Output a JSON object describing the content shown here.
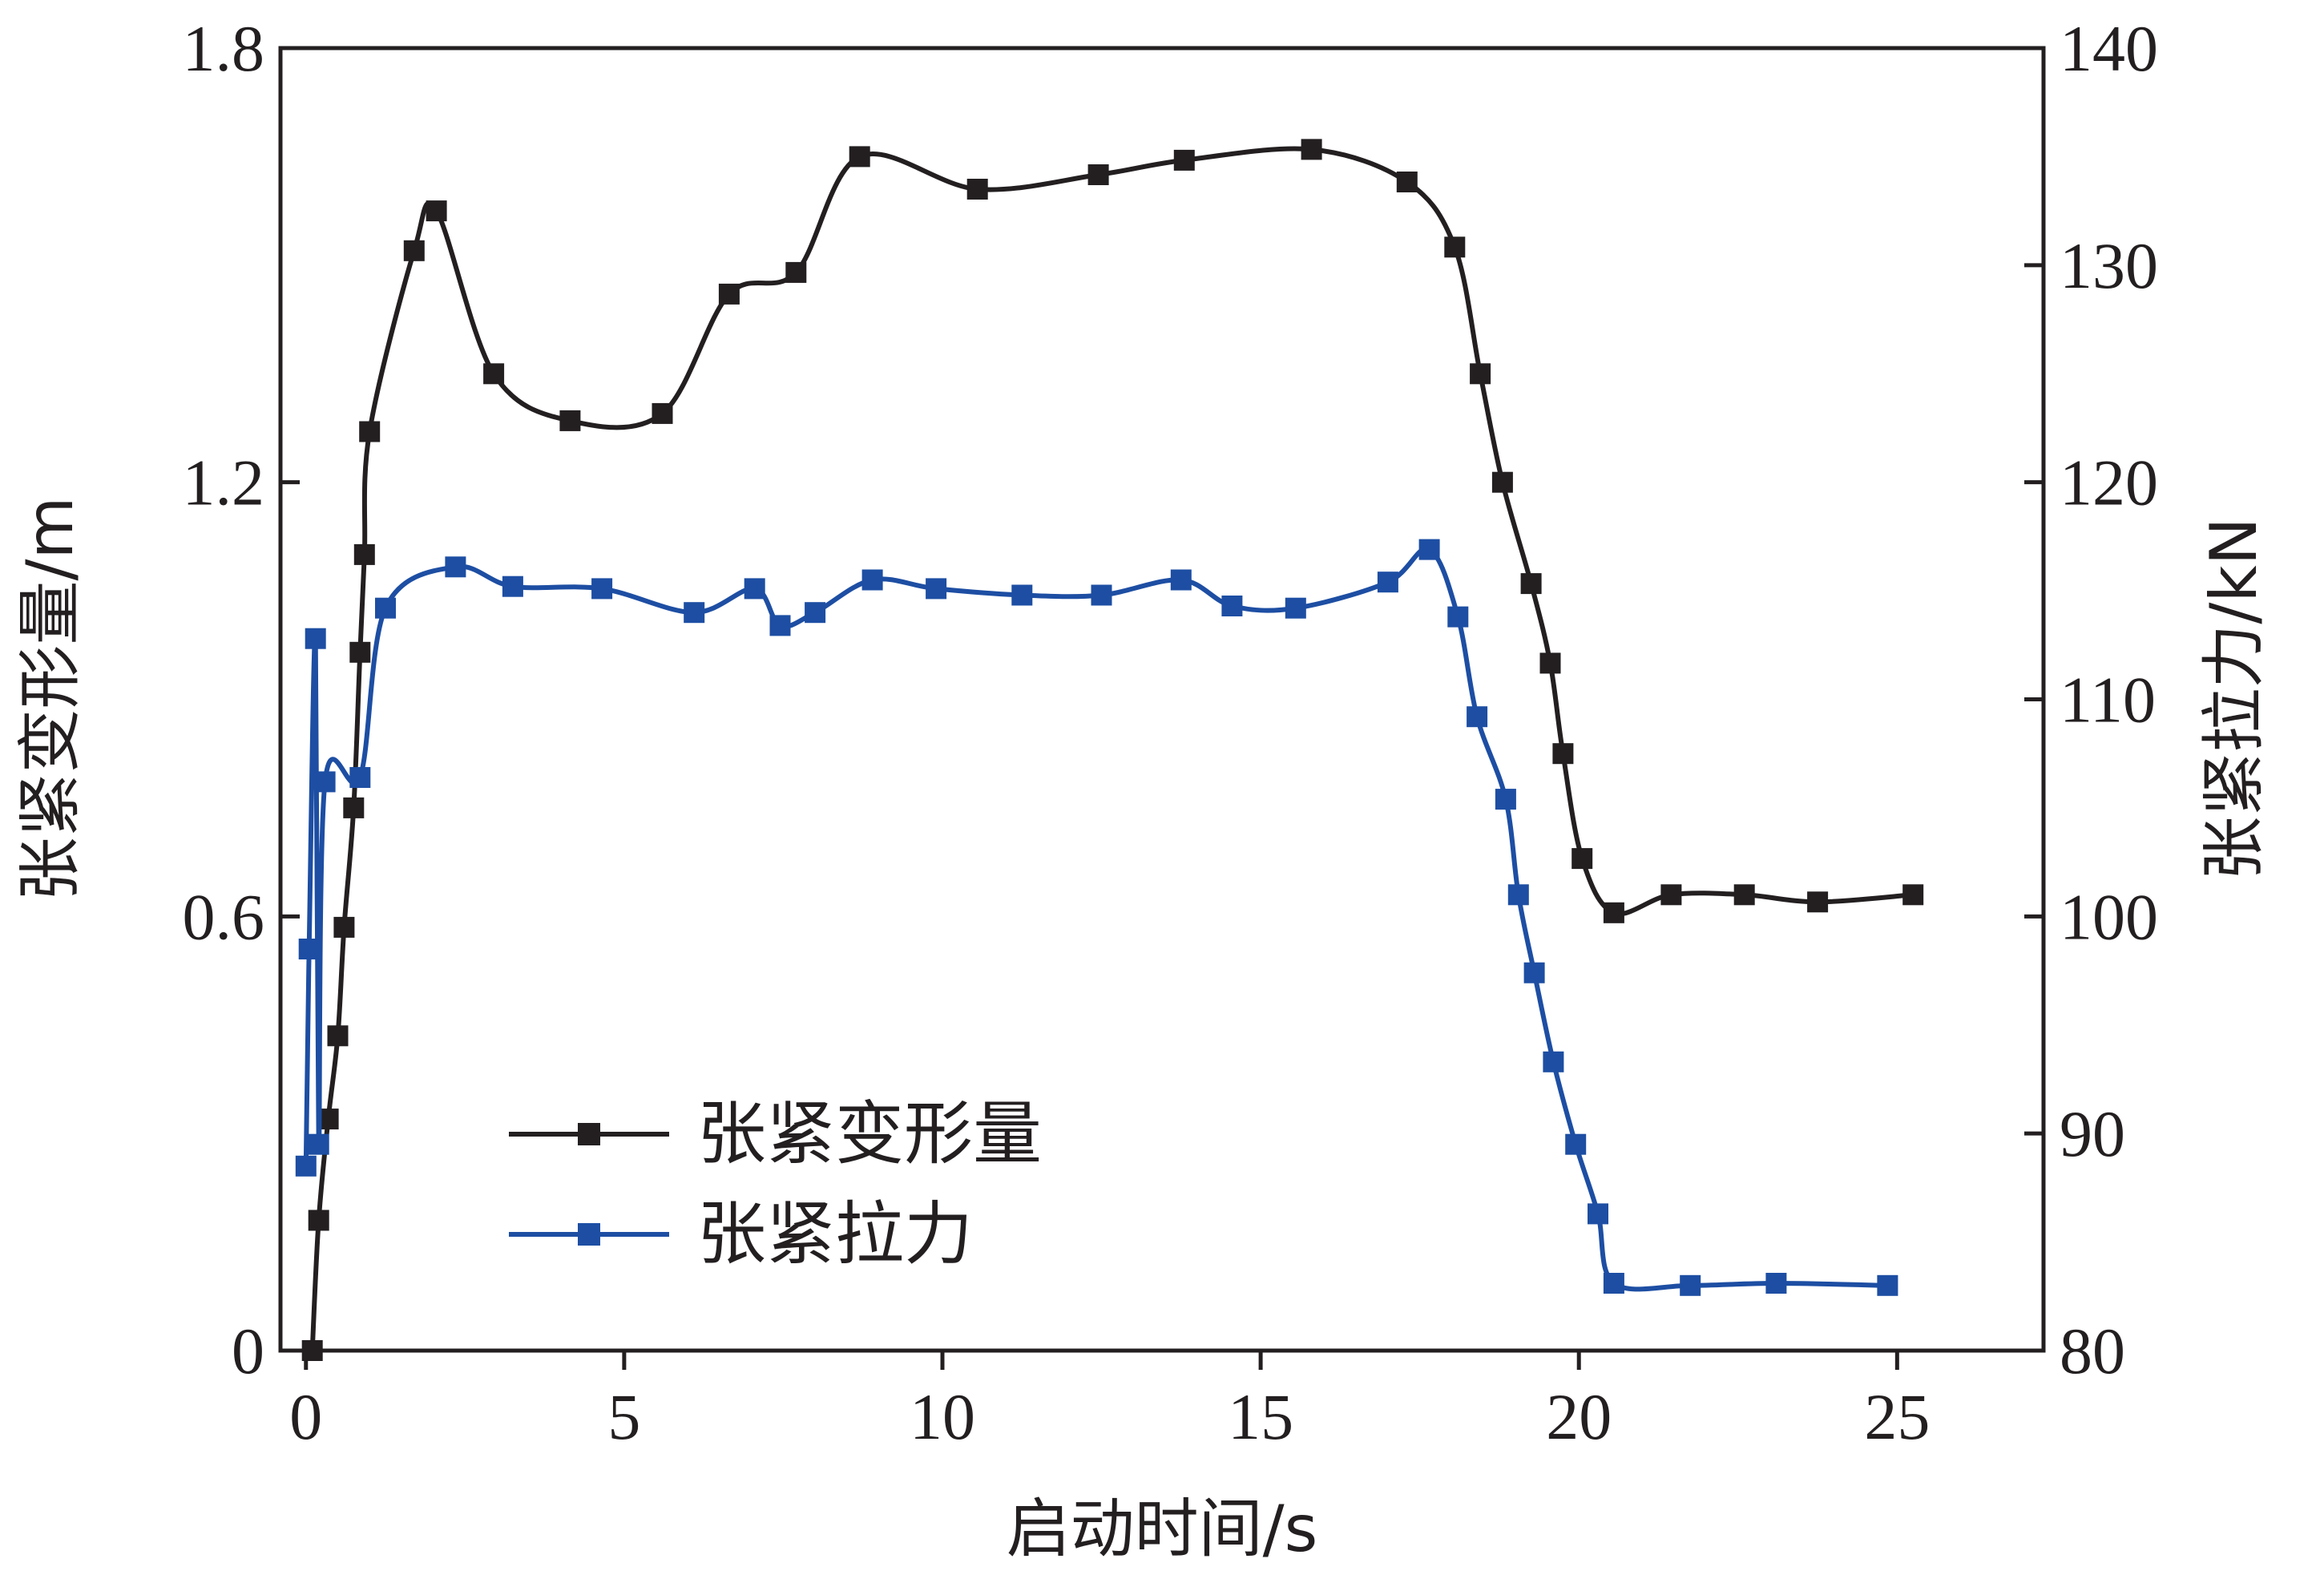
{
  "chart_data": {
    "type": "line",
    "xlabel": "启动时间/s",
    "ylabel_left": "张紧变形量/m",
    "ylabel_right": "张紧拉力/kN",
    "xlim": [
      -0.4,
      27.3
    ],
    "ylim_left": [
      0,
      1.8
    ],
    "ylim_right": [
      80,
      140
    ],
    "x_ticks": [
      0,
      5,
      10,
      15,
      20,
      25
    ],
    "y_left_ticks": [
      0,
      0.6,
      1.2,
      1.8
    ],
    "y_left_tick_labels": [
      "0",
      "0.6",
      "1.2",
      "1.8"
    ],
    "y_right_ticks": [
      80,
      90,
      100,
      110,
      120,
      130,
      140
    ],
    "grid": false,
    "legend_position": "lower-left",
    "series": [
      {
        "name": "张紧变形量",
        "axis": "left",
        "color": "#231f20",
        "x": [
          0.1,
          0.2,
          0.35,
          0.5,
          0.6,
          0.75,
          0.85,
          0.92,
          1.0,
          1.7,
          2.05,
          2.95,
          4.15,
          5.6,
          6.65,
          7.7,
          8.7,
          10.55,
          12.45,
          13.8,
          15.8,
          17.3,
          18.05,
          18.45,
          18.8,
          19.25,
          19.55,
          19.75,
          20.05,
          20.55,
          21.45,
          22.6,
          23.75,
          25.25
        ],
        "y": [
          0.0,
          0.18,
          0.32,
          0.435,
          0.585,
          0.75,
          0.965,
          1.1,
          1.27,
          1.52,
          1.575,
          1.35,
          1.285,
          1.295,
          1.46,
          1.49,
          1.65,
          1.605,
          1.625,
          1.645,
          1.66,
          1.615,
          1.525,
          1.35,
          1.2,
          1.06,
          0.95,
          0.825,
          0.68,
          0.605,
          0.63,
          0.63,
          0.62,
          0.63
        ]
      },
      {
        "name": "张紧拉力",
        "axis": "right",
        "color": "#1d4ea3",
        "x": [
          0.0,
          0.05,
          0.15,
          0.2,
          0.3,
          0.85,
          1.25,
          2.35,
          3.25,
          4.65,
          6.1,
          7.05,
          7.45,
          8.0,
          8.9,
          9.9,
          11.25,
          12.5,
          13.75,
          14.55,
          15.55,
          17.0,
          17.65,
          18.1,
          18.4,
          18.85,
          19.05,
          19.3,
          19.6,
          19.95,
          20.3,
          20.55,
          21.75,
          23.1,
          24.85
        ],
        "y": [
          88.5,
          98.5,
          112.8,
          89.5,
          106.2,
          106.4,
          114.2,
          116.1,
          115.2,
          115.1,
          114.0,
          115.1,
          113.4,
          114.0,
          115.5,
          115.1,
          114.8,
          114.8,
          115.5,
          114.3,
          114.2,
          115.4,
          116.9,
          113.8,
          109.2,
          105.4,
          101.0,
          97.4,
          93.3,
          89.5,
          86.3,
          83.1,
          83.0,
          83.1,
          83.0
        ]
      }
    ]
  }
}
